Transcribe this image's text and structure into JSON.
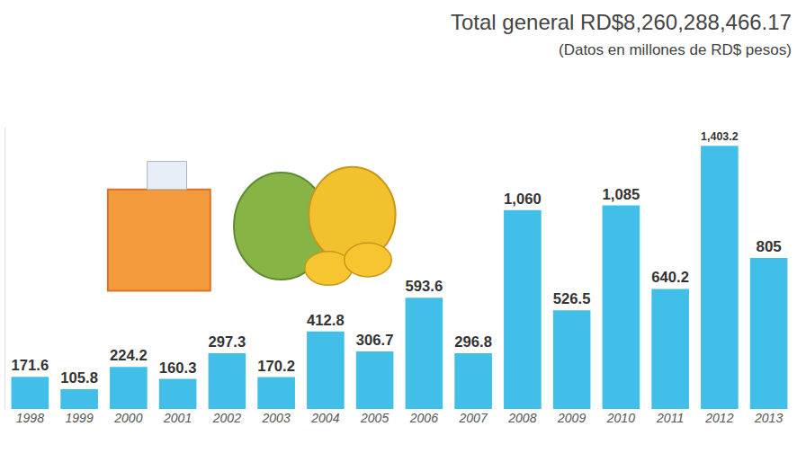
{
  "chart_data": {
    "type": "bar",
    "title": "Total general RD$8,260,288,466.17",
    "subtitle": "(Datos en millones de RD$ pesos)",
    "categories": [
      "1998",
      "1999",
      "2000",
      "2001",
      "2002",
      "2003",
      "2004",
      "2005",
      "2006",
      "2007",
      "2008",
      "2009",
      "2010",
      "2011",
      "2012",
      "2013"
    ],
    "values": [
      171.6,
      105.8,
      224.2,
      160.3,
      297.3,
      170.2,
      412.8,
      306.7,
      593.6,
      296.8,
      1060,
      526.5,
      1085,
      640.2,
      1403.2,
      805
    ],
    "value_labels": [
      "171.6",
      "105.8",
      "224.2",
      "160.3",
      "297.3",
      "170.2",
      "412.8",
      "306.7",
      "593.6",
      "296.8",
      "1,060",
      "526.5",
      "1,085",
      "640.2",
      "1,403.2",
      "805"
    ],
    "color": "#41bfe8",
    "ylim": [
      0,
      1500
    ],
    "grid": false,
    "data_labels": true,
    "tick_labels": "x"
  }
}
